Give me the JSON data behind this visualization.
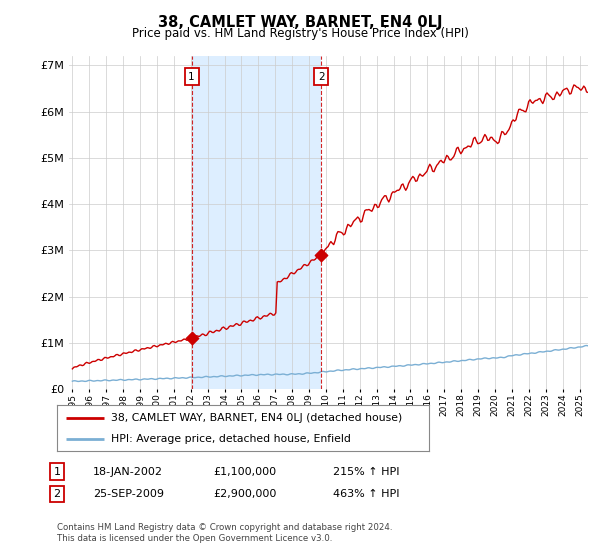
{
  "title": "38, CAMLET WAY, BARNET, EN4 0LJ",
  "subtitle": "Price paid vs. HM Land Registry's House Price Index (HPI)",
  "red_line_label": "38, CAMLET WAY, BARNET, EN4 0LJ (detached house)",
  "blue_line_label": "HPI: Average price, detached house, Enfield",
  "sale1_date": 2002.05,
  "sale1_price": 1100000,
  "sale1_label": "18-JAN-2002",
  "sale1_hpi": "215% ↑ HPI",
  "sale1_num": "1",
  "sale2_date": 2009.73,
  "sale2_price": 2900000,
  "sale2_label": "25-SEP-2009",
  "sale2_hpi": "463% ↑ HPI",
  "sale2_num": "2",
  "ylim": [
    0,
    7000000
  ],
  "xlim_start": 1994.8,
  "xlim_end": 2025.5,
  "footer": "Contains HM Land Registry data © Crown copyright and database right 2024.\nThis data is licensed under the Open Government Licence v3.0.",
  "red_color": "#cc0000",
  "blue_color": "#7bafd4",
  "shade_color": "#ddeeff",
  "background_color": "#ffffff",
  "grid_color": "#cccccc"
}
